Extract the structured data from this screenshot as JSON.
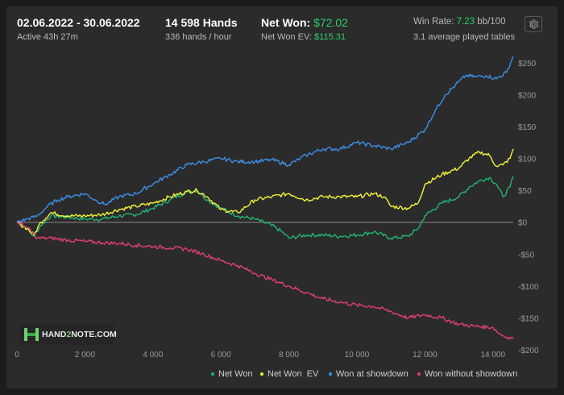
{
  "header": {
    "date_range": "02.06.2022 - 30.06.2022",
    "active": "Active 43h 27m",
    "hands": "14 598 Hands",
    "hands_per_hour": "336 hands / hour",
    "net_won_label": "Net Won:",
    "net_won_value": "$72.02",
    "net_won_ev_label": "Net Won  EV:",
    "net_won_ev_value": "$115.31",
    "win_rate_label": "Win Rate:",
    "win_rate_value": "7.23",
    "win_rate_unit": "bb/100",
    "tables": "3.1 average played tables",
    "settings_icon": "gear-icon"
  },
  "logo": {
    "text_a": "HAND",
    "text_b": "2",
    "text_c": "NOTE.COM"
  },
  "colors": {
    "background": "#2b2b2b",
    "accent_green": "#2fcf6c",
    "net_won": "#22b573",
    "net_won_ev": "#f2f23a",
    "showdown": "#3d8fe6",
    "non_showdown": "#e0406e"
  },
  "chart_data": {
    "type": "line",
    "xlim": [
      0,
      14598
    ],
    "ylim": [
      -200,
      260
    ],
    "x_ticks": [
      0,
      2000,
      4000,
      6000,
      8000,
      10000,
      12000,
      14000
    ],
    "x_tick_labels": [
      "0",
      "2 000",
      "4 000",
      "6 000",
      "8 000",
      "10 000",
      "12 000",
      "14 000"
    ],
    "y_ticks": [
      250,
      200,
      150,
      100,
      50,
      0,
      -50,
      -100,
      -150,
      -200
    ],
    "y_tick_labels": [
      "$250",
      "$200",
      "$150",
      "$100",
      "$50",
      "$0",
      "-$50",
      "-$100",
      "-$150",
      "-$200"
    ],
    "legend_position": "bottom-right",
    "series": [
      {
        "name": "Net Won",
        "color": "#22b573",
        "x": [
          0,
          300,
          500,
          700,
          1000,
          1500,
          2000,
          2500,
          3000,
          3500,
          4000,
          4500,
          5000,
          5300,
          5600,
          6000,
          6500,
          7000,
          7500,
          7800,
          8000,
          8500,
          9000,
          9500,
          10000,
          10500,
          11000,
          11500,
          11800,
          12000,
          12500,
          13000,
          13300,
          13600,
          13900,
          14100,
          14300,
          14500,
          14598
        ],
        "values": [
          0,
          -10,
          -22,
          -5,
          10,
          8,
          5,
          5,
          10,
          12,
          22,
          35,
          48,
          50,
          35,
          22,
          10,
          5,
          -5,
          -15,
          -25,
          -20,
          -20,
          -22,
          -20,
          -15,
          -25,
          -22,
          -10,
          10,
          30,
          40,
          55,
          65,
          70,
          60,
          40,
          55,
          72
        ]
      },
      {
        "name": "Net Won  EV",
        "color": "#f2f23a",
        "x": [
          0,
          300,
          500,
          700,
          1000,
          1500,
          2000,
          2500,
          3000,
          3500,
          4000,
          4500,
          5000,
          5300,
          5600,
          6000,
          6500,
          7000,
          7500,
          8000,
          8500,
          9000,
          9500,
          10000,
          10500,
          10800,
          11000,
          11500,
          11800,
          12000,
          12500,
          13000,
          13300,
          13600,
          13900,
          14100,
          14300,
          14500,
          14598
        ],
        "values": [
          0,
          -10,
          -20,
          0,
          15,
          10,
          10,
          12,
          20,
          25,
          30,
          40,
          48,
          50,
          40,
          20,
          15,
          35,
          40,
          45,
          35,
          40,
          40,
          40,
          45,
          40,
          25,
          22,
          30,
          60,
          75,
          85,
          100,
          110,
          105,
          88,
          90,
          100,
          115
        ]
      },
      {
        "name": "Won at showdown",
        "color": "#3d8fe6",
        "x": [
          0,
          300,
          600,
          900,
          1200,
          1500,
          2000,
          2300,
          2600,
          3000,
          3500,
          4000,
          4500,
          5000,
          5500,
          6000,
          6500,
          7000,
          7500,
          8000,
          8500,
          9000,
          9500,
          10000,
          10500,
          11000,
          11500,
          12000,
          12300,
          12600,
          12900,
          13200,
          13500,
          13800,
          14100,
          14400,
          14598
        ],
        "values": [
          0,
          5,
          10,
          25,
          35,
          40,
          45,
          35,
          28,
          40,
          45,
          60,
          75,
          90,
          95,
          100,
          95,
          95,
          98,
          90,
          105,
          115,
          115,
          125,
          120,
          115,
          125,
          145,
          175,
          200,
          215,
          230,
          228,
          230,
          225,
          235,
          260
        ]
      },
      {
        "name": "Won without showdown",
        "color": "#e0406e",
        "x": [
          0,
          300,
          600,
          1000,
          1500,
          2000,
          2500,
          3000,
          3500,
          4000,
          4500,
          5000,
          5500,
          6000,
          6500,
          7000,
          7500,
          8000,
          8500,
          9000,
          9500,
          10000,
          10500,
          11000,
          11500,
          12000,
          12500,
          13000,
          13500,
          14000,
          14200,
          14400,
          14598
        ],
        "values": [
          0,
          -8,
          -25,
          -25,
          -28,
          -30,
          -32,
          -33,
          -36,
          -38,
          -40,
          -42,
          -50,
          -60,
          -68,
          -80,
          -90,
          -100,
          -110,
          -120,
          -125,
          -130,
          -132,
          -140,
          -150,
          -145,
          -150,
          -160,
          -163,
          -165,
          -175,
          -180,
          -182
        ]
      }
    ]
  }
}
